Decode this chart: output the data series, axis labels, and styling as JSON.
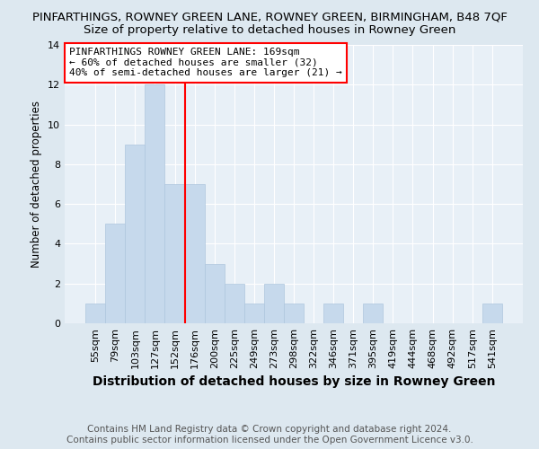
{
  "title": "PINFARTHINGS, ROWNEY GREEN LANE, ROWNEY GREEN, BIRMINGHAM, B48 7QF",
  "subtitle": "Size of property relative to detached houses in Rowney Green",
  "xlabel": "Distribution of detached houses by size in Rowney Green",
  "ylabel": "Number of detached properties",
  "bar_labels": [
    "55sqm",
    "79sqm",
    "103sqm",
    "127sqm",
    "152sqm",
    "176sqm",
    "200sqm",
    "225sqm",
    "249sqm",
    "273sqm",
    "298sqm",
    "322sqm",
    "346sqm",
    "371sqm",
    "395sqm",
    "419sqm",
    "444sqm",
    "468sqm",
    "492sqm",
    "517sqm",
    "541sqm"
  ],
  "bar_values": [
    1,
    5,
    9,
    12,
    7,
    7,
    3,
    2,
    1,
    2,
    1,
    0,
    1,
    0,
    1,
    0,
    0,
    0,
    0,
    0,
    1
  ],
  "bar_color": "#c6d9ec",
  "bar_edge_color": "#aec6de",
  "vline_color": "red",
  "vline_x_index": 4.5,
  "ylim": [
    0,
    14
  ],
  "yticks": [
    0,
    2,
    4,
    6,
    8,
    10,
    12,
    14
  ],
  "annotation_title": "PINFARTHINGS ROWNEY GREEN LANE: 169sqm",
  "annotation_line1": "← 60% of detached houses are smaller (32)",
  "annotation_line2": "40% of semi-detached houses are larger (21) →",
  "annotation_box_color": "white",
  "annotation_box_edge": "red",
  "footer1": "Contains HM Land Registry data © Crown copyright and database right 2024.",
  "footer2": "Contains public sector information licensed under the Open Government Licence v3.0.",
  "bg_color": "#dde8f0",
  "plot_bg_color": "#e8f0f7",
  "title_fontsize": 9.5,
  "subtitle_fontsize": 9.5,
  "xlabel_fontsize": 10,
  "ylabel_fontsize": 8.5,
  "footer_fontsize": 7.5,
  "tick_fontsize": 8,
  "ann_fontsize": 8
}
